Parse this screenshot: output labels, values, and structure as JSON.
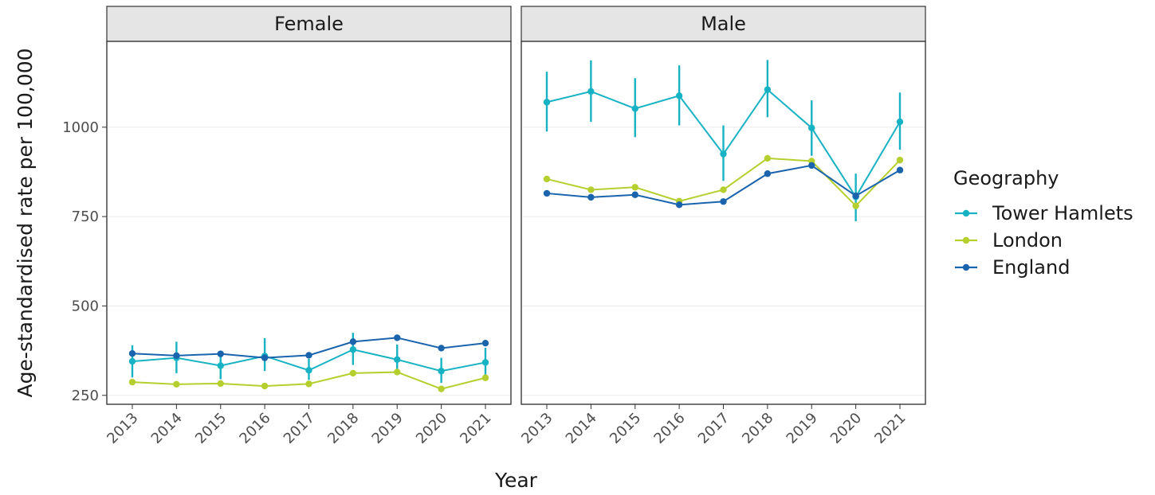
{
  "chart_data": {
    "type": "line",
    "xlabel": "Year",
    "ylabel": "Age-standardised rate per 100,000",
    "ylim": [
      225,
      1240
    ],
    "yticks": [
      250,
      500,
      750,
      1000
    ],
    "years": [
      "2013",
      "2014",
      "2015",
      "2016",
      "2017",
      "2018",
      "2019",
      "2020",
      "2021"
    ],
    "legend_title": "Geography",
    "legend_position": "right",
    "series_styles": [
      {
        "name": "Tower Hamlets",
        "color": "#17b3c4"
      },
      {
        "name": "London",
        "color": "#b5cf2f"
      },
      {
        "name": "England",
        "color": "#1a64ad"
      }
    ],
    "facets": [
      {
        "label": "Female",
        "series": [
          {
            "name": "Tower Hamlets",
            "values": [
              345,
              355,
              333,
              360,
              320,
              378,
              350,
              318,
              342
            ],
            "lower": [
              300,
              312,
              295,
              318,
              293,
              335,
              312,
              285,
              305
            ],
            "upper": [
              390,
              400,
              375,
              410,
              352,
              425,
              392,
              355,
              383
            ]
          },
          {
            "name": "London",
            "values": [
              287,
              281,
              283,
              276,
              282,
              312,
              315,
              268,
              299
            ],
            "lower": [
              282,
              277,
              279,
              272,
              278,
              308,
              311,
              264,
              295
            ],
            "upper": [
              292,
              285,
              287,
              280,
              286,
              316,
              319,
              272,
              303
            ]
          },
          {
            "name": "England",
            "values": [
              367,
              361,
              366,
              355,
              362,
              400,
              411,
              382,
              396
            ],
            "lower": [
              365,
              359,
              364,
              353,
              360,
              398,
              409,
              380,
              394
            ],
            "upper": [
              369,
              363,
              368,
              357,
              364,
              402,
              413,
              384,
              398
            ]
          }
        ]
      },
      {
        "label": "Male",
        "series": [
          {
            "name": "Tower Hamlets",
            "values": [
              1070,
              1100,
              1052,
              1088,
              925,
              1105,
              998,
              805,
              1015
            ],
            "lower": [
              988,
              1015,
              972,
              1005,
              850,
              1028,
              920,
              737,
              937
            ],
            "upper": [
              1155,
              1187,
              1137,
              1173,
              1005,
              1188,
              1075,
              870,
              1097
            ]
          },
          {
            "name": "London",
            "values": [
              855,
              825,
              832,
              793,
              825,
              913,
              905,
              780,
              908
            ],
            "lower": [
              846,
              817,
              824,
              786,
              817,
              904,
              897,
              772,
              899
            ],
            "upper": [
              864,
              833,
              840,
              800,
              833,
              922,
              913,
              788,
              917
            ]
          },
          {
            "name": "England",
            "values": [
              815,
              804,
              811,
              783,
              792,
              870,
              893,
              808,
              880
            ],
            "lower": [
              812,
              801,
              808,
              780,
              789,
              867,
              890,
              805,
              877
            ],
            "upper": [
              818,
              807,
              814,
              786,
              795,
              873,
              896,
              811,
              883
            ]
          }
        ]
      }
    ]
  }
}
